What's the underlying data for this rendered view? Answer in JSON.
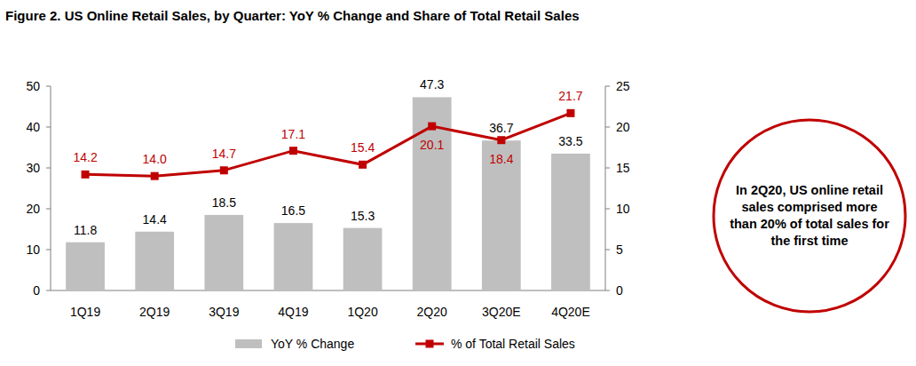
{
  "chart_data": {
    "type": "bar",
    "title": "Figure 2. US Online Retail Sales, by Quarter: YoY % Change and Share of Total Retail Sales",
    "categories": [
      "1Q19",
      "2Q19",
      "3Q19",
      "4Q19",
      "1Q20",
      "2Q20",
      "3Q20E",
      "4Q20E"
    ],
    "series": [
      {
        "name": "YoY % Change",
        "type": "bar",
        "color": "#bfbfbf",
        "values": [
          11.8,
          14.4,
          18.5,
          16.5,
          15.3,
          47.3,
          36.7,
          33.5
        ]
      },
      {
        "name": "% of Total Retail Sales",
        "type": "line",
        "axis": "y2",
        "color": "#c00000",
        "marker": "square",
        "values": [
          14.2,
          14.0,
          14.7,
          17.1,
          15.4,
          20.1,
          18.4,
          21.7
        ],
        "value_labels": [
          "14.2",
          "14.0",
          "14.7",
          "17.1",
          "15.4",
          "20.1",
          "18.4",
          "21.7"
        ]
      }
    ],
    "ylim": [
      0,
      50
    ],
    "yticks": [
      0,
      10,
      20,
      30,
      40,
      50
    ],
    "y2lim": [
      0,
      25
    ],
    "y2ticks": [
      0,
      5,
      10,
      15,
      20,
      25
    ],
    "grid": false,
    "data_labels": true,
    "legend": "bottom",
    "annotations": [
      "In 2Q20, US online retail sales comprised more than 20% of total sales for the first time"
    ]
  }
}
